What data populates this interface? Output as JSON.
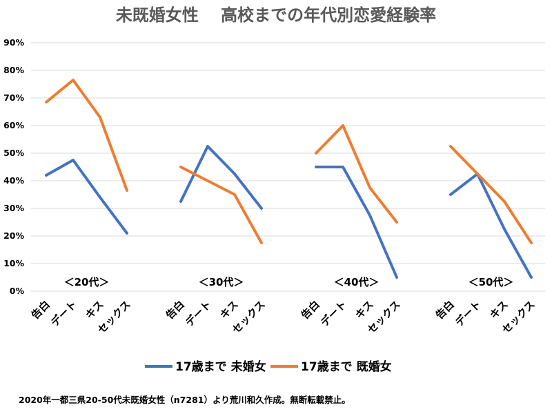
{
  "chart_data": {
    "type": "line",
    "title": "未既婚女性　 高校までの年代別恋愛経験率",
    "y_ticks": [
      "0%",
      "10%",
      "20%",
      "30%",
      "40%",
      "50%",
      "60%",
      "70%",
      "80%",
      "90%"
    ],
    "ylim": [
      0,
      90
    ],
    "grid": true,
    "legend_position": "bottom",
    "categories": [
      "告白",
      "デート",
      "キス",
      "セックス"
    ],
    "groups": [
      {
        "label": "＜20代＞",
        "series": [
          {
            "name": "17歳まで 未婚女",
            "values": [
              42,
              47.5,
              34,
              21
            ]
          },
          {
            "name": "17歳まで 既婚女",
            "values": [
              68.5,
              76.5,
              63,
              36.5
            ]
          }
        ]
      },
      {
        "label": "＜30代＞",
        "series": [
          {
            "name": "17歳まで 未婚女",
            "values": [
              32.5,
              52.5,
              42.5,
              30
            ]
          },
          {
            "name": "17歳まで 既婚女",
            "values": [
              45,
              40,
              35,
              17.5
            ]
          }
        ]
      },
      {
        "label": "＜40代＞",
        "series": [
          {
            "name": "17歳まで 未婚女",
            "values": [
              45,
              45,
              27.5,
              5
            ]
          },
          {
            "name": "17歳まで 既婚女",
            "values": [
              50,
              60,
              37.5,
              25
            ]
          }
        ]
      },
      {
        "label": "＜50代＞",
        "series": [
          {
            "name": "17歳まで 未婚女",
            "values": [
              35,
              42.5,
              22.5,
              5
            ]
          },
          {
            "name": "17歳まで 既婚女",
            "values": [
              52.5,
              42.5,
              32.5,
              17.5
            ]
          }
        ]
      }
    ],
    "legend": [
      {
        "name": "17歳まで 未婚女",
        "color": "#4472c4"
      },
      {
        "name": "17歳まで 既婚女",
        "color": "#ed7d31"
      }
    ],
    "footnote": "2020年一都三県20-50代未既婚女性（n7281）より荒川和久作成。無断転載禁止。"
  }
}
